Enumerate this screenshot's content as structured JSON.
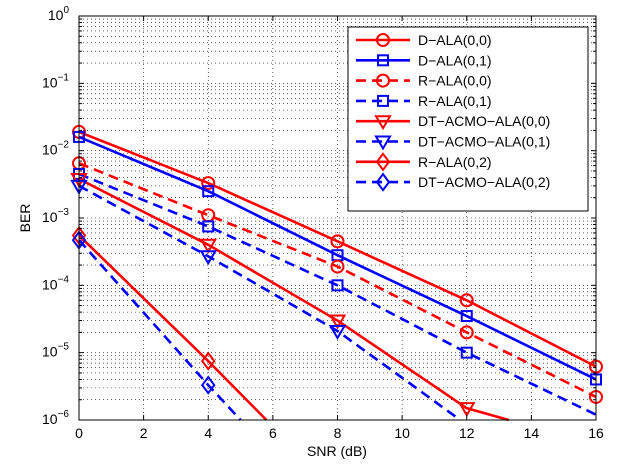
{
  "chart_data": {
    "type": "line",
    "title": "",
    "xlabel": "SNR (dB)",
    "ylabel": "BER",
    "xlim": [
      0,
      16
    ],
    "ylim": [
      1e-06,
      1
    ],
    "yscale": "log",
    "grid": true,
    "legend_position": "top-right",
    "x_ticks": [
      "0",
      "2",
      "4",
      "6",
      "8",
      "10",
      "12",
      "14",
      "16"
    ],
    "y_ticks": [
      {
        "base": "10",
        "exp": "0"
      },
      {
        "base": "10",
        "exp": "−1"
      },
      {
        "base": "10",
        "exp": "−2"
      },
      {
        "base": "10",
        "exp": "−3"
      },
      {
        "base": "10",
        "exp": "−4"
      },
      {
        "base": "10",
        "exp": "−5"
      },
      {
        "base": "10",
        "exp": "−6"
      }
    ],
    "series": [
      {
        "name": "D−ALA(0,0)",
        "color": "#ff0000",
        "dash": "solid",
        "marker": "circle",
        "x": [
          0,
          4,
          8,
          12,
          16
        ],
        "y": [
          0.019,
          0.0033,
          0.00045,
          6e-05,
          6.2e-06
        ]
      },
      {
        "name": "D−ALA(0,1)",
        "color": "#0000ff",
        "dash": "solid",
        "marker": "square",
        "x": [
          0,
          4,
          8,
          12,
          16
        ],
        "y": [
          0.016,
          0.0025,
          0.00028,
          3.5e-05,
          4e-06
        ]
      },
      {
        "name": "R−ALA(0,0)",
        "color": "#ff0000",
        "dash": "dashed",
        "marker": "circle",
        "x": [
          0,
          4,
          8,
          12,
          16
        ],
        "y": [
          0.0065,
          0.0011,
          0.00019,
          2e-05,
          2.2e-06
        ]
      },
      {
        "name": "R−ALA(0,1)",
        "color": "#0000ff",
        "dash": "dashed",
        "marker": "square",
        "x": [
          0,
          4,
          8,
          12,
          16
        ],
        "y": [
          0.0045,
          0.00075,
          0.0001,
          1e-05,
          1.2e-06
        ]
      },
      {
        "name": "DT−ACMO−ALA(0,0)",
        "color": "#ff0000",
        "dash": "solid",
        "marker": "triangle-down",
        "x": [
          0,
          4,
          8,
          12,
          13.3
        ],
        "y": [
          0.0038,
          0.0004,
          3e-05,
          1.5e-06,
          1e-06
        ]
      },
      {
        "name": "DT−ACMO−ALA(0,1)",
        "color": "#0000ff",
        "dash": "dashed",
        "marker": "triangle-down",
        "x": [
          0,
          4,
          8,
          11.8
        ],
        "y": [
          0.003,
          0.00027,
          2.1e-05,
          1e-06
        ]
      },
      {
        "name": "R−ALA(0,2)",
        "color": "#ff0000",
        "dash": "solid",
        "marker": "diamond",
        "x": [
          0,
          4,
          5.8
        ],
        "y": [
          0.00055,
          7.5e-06,
          1e-06
        ]
      },
      {
        "name": "DT−ACMO−ALA(0,2)",
        "color": "#0000ff",
        "dash": "dashed",
        "marker": "diamond",
        "x": [
          0,
          4,
          5.0
        ],
        "y": [
          0.00047,
          3.3e-06,
          1e-06
        ]
      }
    ]
  }
}
